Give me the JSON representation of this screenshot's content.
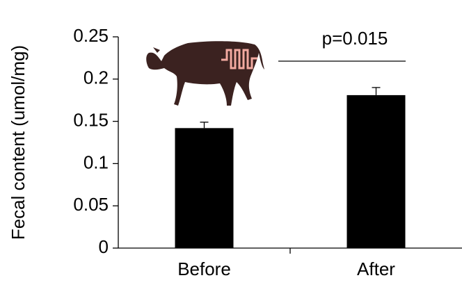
{
  "chart_data": {
    "type": "bar",
    "y_label": "Fecal content (umol/mg)",
    "categories": [
      "Before",
      "After"
    ],
    "values": [
      0.142,
      0.181
    ],
    "errors": [
      0.007,
      0.009
    ],
    "color": "#000000",
    "ylim": [
      0,
      0.25
    ],
    "yticks": [
      0,
      0.05,
      0.1,
      0.15,
      0.2,
      0.25
    ],
    "annotation": "p=0.015",
    "grid": false
  }
}
